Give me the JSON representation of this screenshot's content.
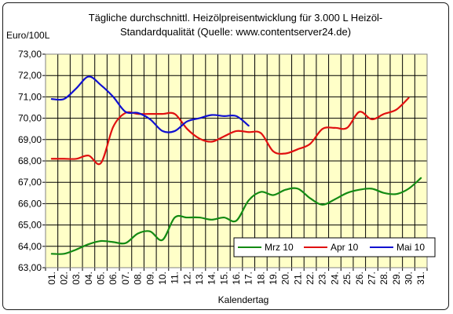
{
  "chart_data": {
    "type": "line",
    "title_lines": [
      "Tägliche durchschnittl. Heizölpreisentwicklung für 3.000 L Heizöl-",
      "Standardqualität (Quelle: www.contentserver24.de)"
    ],
    "ylabel": "Euro/100L",
    "xlabel": "Kalendertag",
    "ylim": [
      63,
      73
    ],
    "yticks": [
      "63,00",
      "64,00",
      "65,00",
      "66,00",
      "67,00",
      "68,00",
      "69,00",
      "70,00",
      "71,00",
      "72,00",
      "73,00"
    ],
    "categories": [
      "01.",
      "02.",
      "03.",
      "04.",
      "05.",
      "06.",
      "07.",
      "08.",
      "09.",
      "10.",
      "11.",
      "12.",
      "13.",
      "14.",
      "15.",
      "16.",
      "17.",
      "18.",
      "19.",
      "20.",
      "21.",
      "22.",
      "23.",
      "24.",
      "25.",
      "26.",
      "27.",
      "28.",
      "29.",
      "30.",
      "31."
    ],
    "grid": true,
    "plot_background": "#ffffc8",
    "legend_position": "bottom-right",
    "series": [
      {
        "name": "Mrz 10",
        "color": "#138a13",
        "values": [
          63.65,
          63.65,
          63.85,
          64.1,
          64.25,
          64.2,
          64.15,
          64.6,
          64.7,
          64.3,
          65.35,
          65.35,
          65.35,
          65.25,
          65.35,
          65.2,
          66.15,
          66.55,
          66.4,
          66.65,
          66.7,
          66.25,
          65.95,
          66.2,
          66.5,
          66.65,
          66.7,
          66.5,
          66.45,
          66.7,
          67.2
        ]
      },
      {
        "name": "Apr 10",
        "color": "#e01010",
        "values": [
          68.1,
          68.1,
          68.1,
          68.25,
          67.9,
          69.6,
          70.25,
          70.2,
          70.2,
          70.2,
          70.2,
          69.5,
          69.05,
          68.9,
          69.15,
          69.4,
          69.35,
          69.3,
          68.45,
          68.35,
          68.55,
          68.8,
          69.5,
          69.55,
          69.55,
          70.3,
          69.95,
          70.2,
          70.4,
          70.95,
          null
        ]
      },
      {
        "name": "Mai 10",
        "color": "#1010d0",
        "values": [
          70.9,
          70.9,
          71.4,
          71.95,
          71.55,
          71.0,
          70.3,
          70.25,
          69.95,
          69.4,
          69.4,
          69.85,
          70.0,
          70.15,
          70.1,
          70.1,
          69.65,
          null,
          null,
          null,
          null,
          null,
          null,
          null,
          null,
          null,
          null,
          null,
          null,
          null,
          null
        ]
      }
    ]
  }
}
